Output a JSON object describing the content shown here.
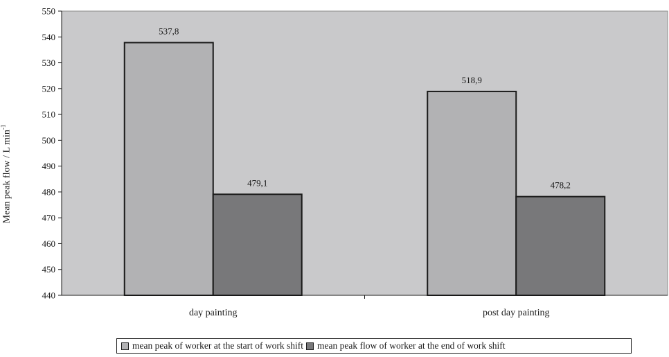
{
  "chart_data": {
    "type": "bar",
    "title": "",
    "xlabel": "",
    "ylabel": "Mean peak flow / L min",
    "ylabel_superscript": "-1",
    "ylim": [
      440,
      550
    ],
    "yticks": [
      440,
      450,
      460,
      470,
      480,
      490,
      500,
      510,
      520,
      530,
      540,
      550
    ],
    "ytick_labels": [
      "440",
      "450",
      "460",
      "470",
      "480",
      "490",
      "500",
      "510",
      "520",
      "530",
      "540",
      "550"
    ],
    "categories": [
      "day painting",
      "post day painting"
    ],
    "series": [
      {
        "name": "mean peak of worker at the start of work shift",
        "values": [
          537.8,
          518.9
        ],
        "labels": [
          "537,8",
          "518,9"
        ],
        "color": "#b2b2b4"
      },
      {
        "name": "mean peak flow of worker at the end of work shift",
        "values": [
          479.1,
          478.2
        ],
        "labels": [
          "479,1",
          "478,2"
        ],
        "color": "#78787a"
      }
    ],
    "plot_background": "#c9c9cb",
    "grid": false,
    "legend_position": "bottom"
  }
}
